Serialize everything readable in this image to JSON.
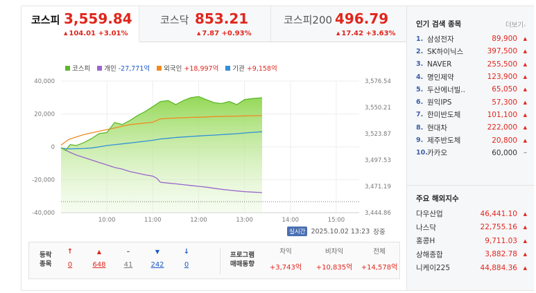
{
  "tabs": [
    {
      "name": "코스피",
      "value": "3,559.84",
      "change": "104.01 +3.01%",
      "active": true
    },
    {
      "name": "코스닥",
      "value": "853.21",
      "change": "7.87 +0.93%",
      "active": false
    },
    {
      "name": "코스피200",
      "value": "496.79",
      "change": "17.42 +3.63%",
      "active": false
    }
  ],
  "legend": [
    {
      "name": "코스피",
      "value": "",
      "color": "#5cb82a"
    },
    {
      "name": "개인",
      "value": "-27,771억",
      "color": "#9966cc"
    },
    {
      "name": "외국인",
      "value": "+18,997억",
      "color": "#ef8a1f"
    },
    {
      "name": "기관",
      "value": "+9,158억",
      "color": "#2f8fd8"
    }
  ],
  "chart_data": {
    "type": "line",
    "x_ticks": [
      "10:00",
      "11:00",
      "12:00",
      "13:00",
      "14:00",
      "15:00"
    ],
    "left_axis": {
      "ticks": [
        "40,000",
        "20,000",
        "0",
        "-20,000",
        "-40,000"
      ],
      "ylim": [
        -40000,
        40000
      ]
    },
    "right_axis": {
      "ticks": [
        "3,576.54",
        "3,550.21",
        "3,523.87",
        "3,497.53",
        "3,471.19",
        "3,444.86"
      ],
      "ylim": [
        3444.86,
        3576.54
      ]
    },
    "time_range": [
      "09:00",
      "15:30"
    ],
    "series": [
      {
        "name": "코스피",
        "axis": "right",
        "color": "#5cb82a",
        "x": [
          "09:00",
          "09:06",
          "09:12",
          "09:20",
          "09:30",
          "09:40",
          "09:50",
          "10:00",
          "10:10",
          "10:20",
          "10:30",
          "10:40",
          "10:50",
          "11:00",
          "11:10",
          "11:20",
          "11:30",
          "11:40",
          "11:50",
          "12:00",
          "12:10",
          "12:20",
          "12:30",
          "12:40",
          "12:50",
          "13:00",
          "13:10",
          "13:23"
        ],
        "y": [
          3510,
          3507,
          3513,
          3512,
          3515,
          3519,
          3524,
          3525,
          3535,
          3533,
          3537,
          3542,
          3546,
          3551,
          3556,
          3557,
          3553,
          3557,
          3560,
          3561,
          3558,
          3555,
          3554,
          3556,
          3553,
          3558,
          3559,
          3559.84
        ]
      },
      {
        "name": "개인",
        "axis": "left",
        "color": "#9966cc",
        "x": [
          "09:00",
          "09:10",
          "09:20",
          "09:30",
          "09:40",
          "09:50",
          "10:00",
          "10:10",
          "10:20",
          "10:30",
          "10:40",
          "10:50",
          "11:00",
          "11:05",
          "11:10",
          "11:20",
          "11:30",
          "11:40",
          "11:50",
          "12:00",
          "12:10",
          "12:20",
          "12:30",
          "12:40",
          "12:50",
          "13:00",
          "13:10",
          "13:23"
        ],
        "y": [
          -500,
          -3000,
          -5000,
          -6500,
          -8000,
          -9500,
          -11000,
          -12500,
          -13500,
          -15000,
          -16000,
          -17000,
          -17800,
          -19000,
          -21500,
          -22000,
          -22500,
          -23000,
          -23500,
          -24000,
          -24500,
          -25200,
          -25800,
          -26300,
          -26800,
          -27200,
          -27500,
          -27771
        ]
      },
      {
        "name": "외국인",
        "axis": "left",
        "color": "#ef8a1f",
        "x": [
          "09:00",
          "09:10",
          "09:20",
          "09:30",
          "09:40",
          "09:50",
          "10:00",
          "10:10",
          "10:20",
          "10:30",
          "10:40",
          "10:50",
          "11:00",
          "11:10",
          "11:20",
          "11:30",
          "11:40",
          "11:50",
          "12:00",
          "12:10",
          "12:20",
          "12:30",
          "12:40",
          "12:50",
          "13:00",
          "13:10",
          "13:23"
        ],
        "y": [
          1000,
          4500,
          6000,
          7500,
          8500,
          9500,
          10500,
          11500,
          12500,
          13500,
          14000,
          14500,
          15000,
          17000,
          17300,
          17500,
          17700,
          17900,
          18000,
          18200,
          18400,
          18500,
          18600,
          18700,
          18800,
          18900,
          18997
        ]
      },
      {
        "name": "기관",
        "axis": "left",
        "color": "#2f8fd8",
        "x": [
          "09:00",
          "09:10",
          "09:20",
          "09:30",
          "09:40",
          "09:50",
          "10:00",
          "10:10",
          "10:20",
          "10:30",
          "10:40",
          "10:50",
          "11:00",
          "11:10",
          "11:20",
          "11:30",
          "11:40",
          "11:50",
          "12:00",
          "12:10",
          "12:20",
          "12:30",
          "12:40",
          "12:50",
          "13:00",
          "13:10",
          "13:23"
        ],
        "y": [
          -800,
          -1200,
          -1100,
          -1000,
          -700,
          0,
          800,
          1300,
          1800,
          2300,
          2900,
          3400,
          4000,
          4800,
          5200,
          5700,
          6000,
          6300,
          6600,
          6900,
          7100,
          7400,
          7700,
          8000,
          8400,
          8800,
          9158
        ]
      }
    ]
  },
  "realtime": {
    "badge": "실시간",
    "datetime": "2025.10.02 13:23",
    "suffix": "장중"
  },
  "breadth": {
    "label": [
      "등락",
      "종목"
    ],
    "items": [
      {
        "icon": "↑",
        "value": "0",
        "color": "red"
      },
      {
        "icon": "▲",
        "value": "648",
        "color": "red"
      },
      {
        "icon": "–",
        "value": "41",
        "color": "gray"
      },
      {
        "icon": "▼",
        "value": "242",
        "color": "blue"
      },
      {
        "icon": "↓",
        "value": "0",
        "color": "blue"
      }
    ]
  },
  "program": {
    "label": [
      "프로그램",
      "매매동향"
    ],
    "cols": [
      {
        "head": "차익",
        "value": "+3,743억"
      },
      {
        "head": "비차익",
        "value": "+10,835억"
      },
      {
        "head": "전체",
        "value": "+14,578억"
      }
    ]
  },
  "popular": {
    "title": "인기 검색 종목",
    "more": "더보기",
    "items": [
      {
        "rank": "1.",
        "name": "삼성전자",
        "price": "89,900",
        "dir": "up"
      },
      {
        "rank": "2.",
        "name": "SK하이닉스",
        "price": "397,500",
        "dir": "up"
      },
      {
        "rank": "3.",
        "name": "NAVER",
        "price": "255,500",
        "dir": "up"
      },
      {
        "rank": "4.",
        "name": "명인제약",
        "price": "123,900",
        "dir": "up"
      },
      {
        "rank": "5.",
        "name": "두산에너빌..",
        "price": "65,050",
        "dir": "up"
      },
      {
        "rank": "6.",
        "name": "원익IPS",
        "price": "57,300",
        "dir": "up"
      },
      {
        "rank": "7.",
        "name": "한미반도체",
        "price": "101,100",
        "dir": "up"
      },
      {
        "rank": "8.",
        "name": "현대차",
        "price": "222,000",
        "dir": "up"
      },
      {
        "rank": "9.",
        "name": "제주반도체",
        "price": "20,800",
        "dir": "up"
      },
      {
        "rank": "10.",
        "name": "카카오",
        "price": "60,000",
        "dir": "flat"
      }
    ]
  },
  "overseas": {
    "title": "주요 해외지수",
    "items": [
      {
        "name": "다우산업",
        "value": "46,441.10"
      },
      {
        "name": "나스닥",
        "value": "22,755.16"
      },
      {
        "name": "홍콩H",
        "value": "9,711.03"
      },
      {
        "name": "상해종합",
        "value": "3,882.78"
      },
      {
        "name": "니케이225",
        "value": "44,884.36"
      }
    ]
  }
}
